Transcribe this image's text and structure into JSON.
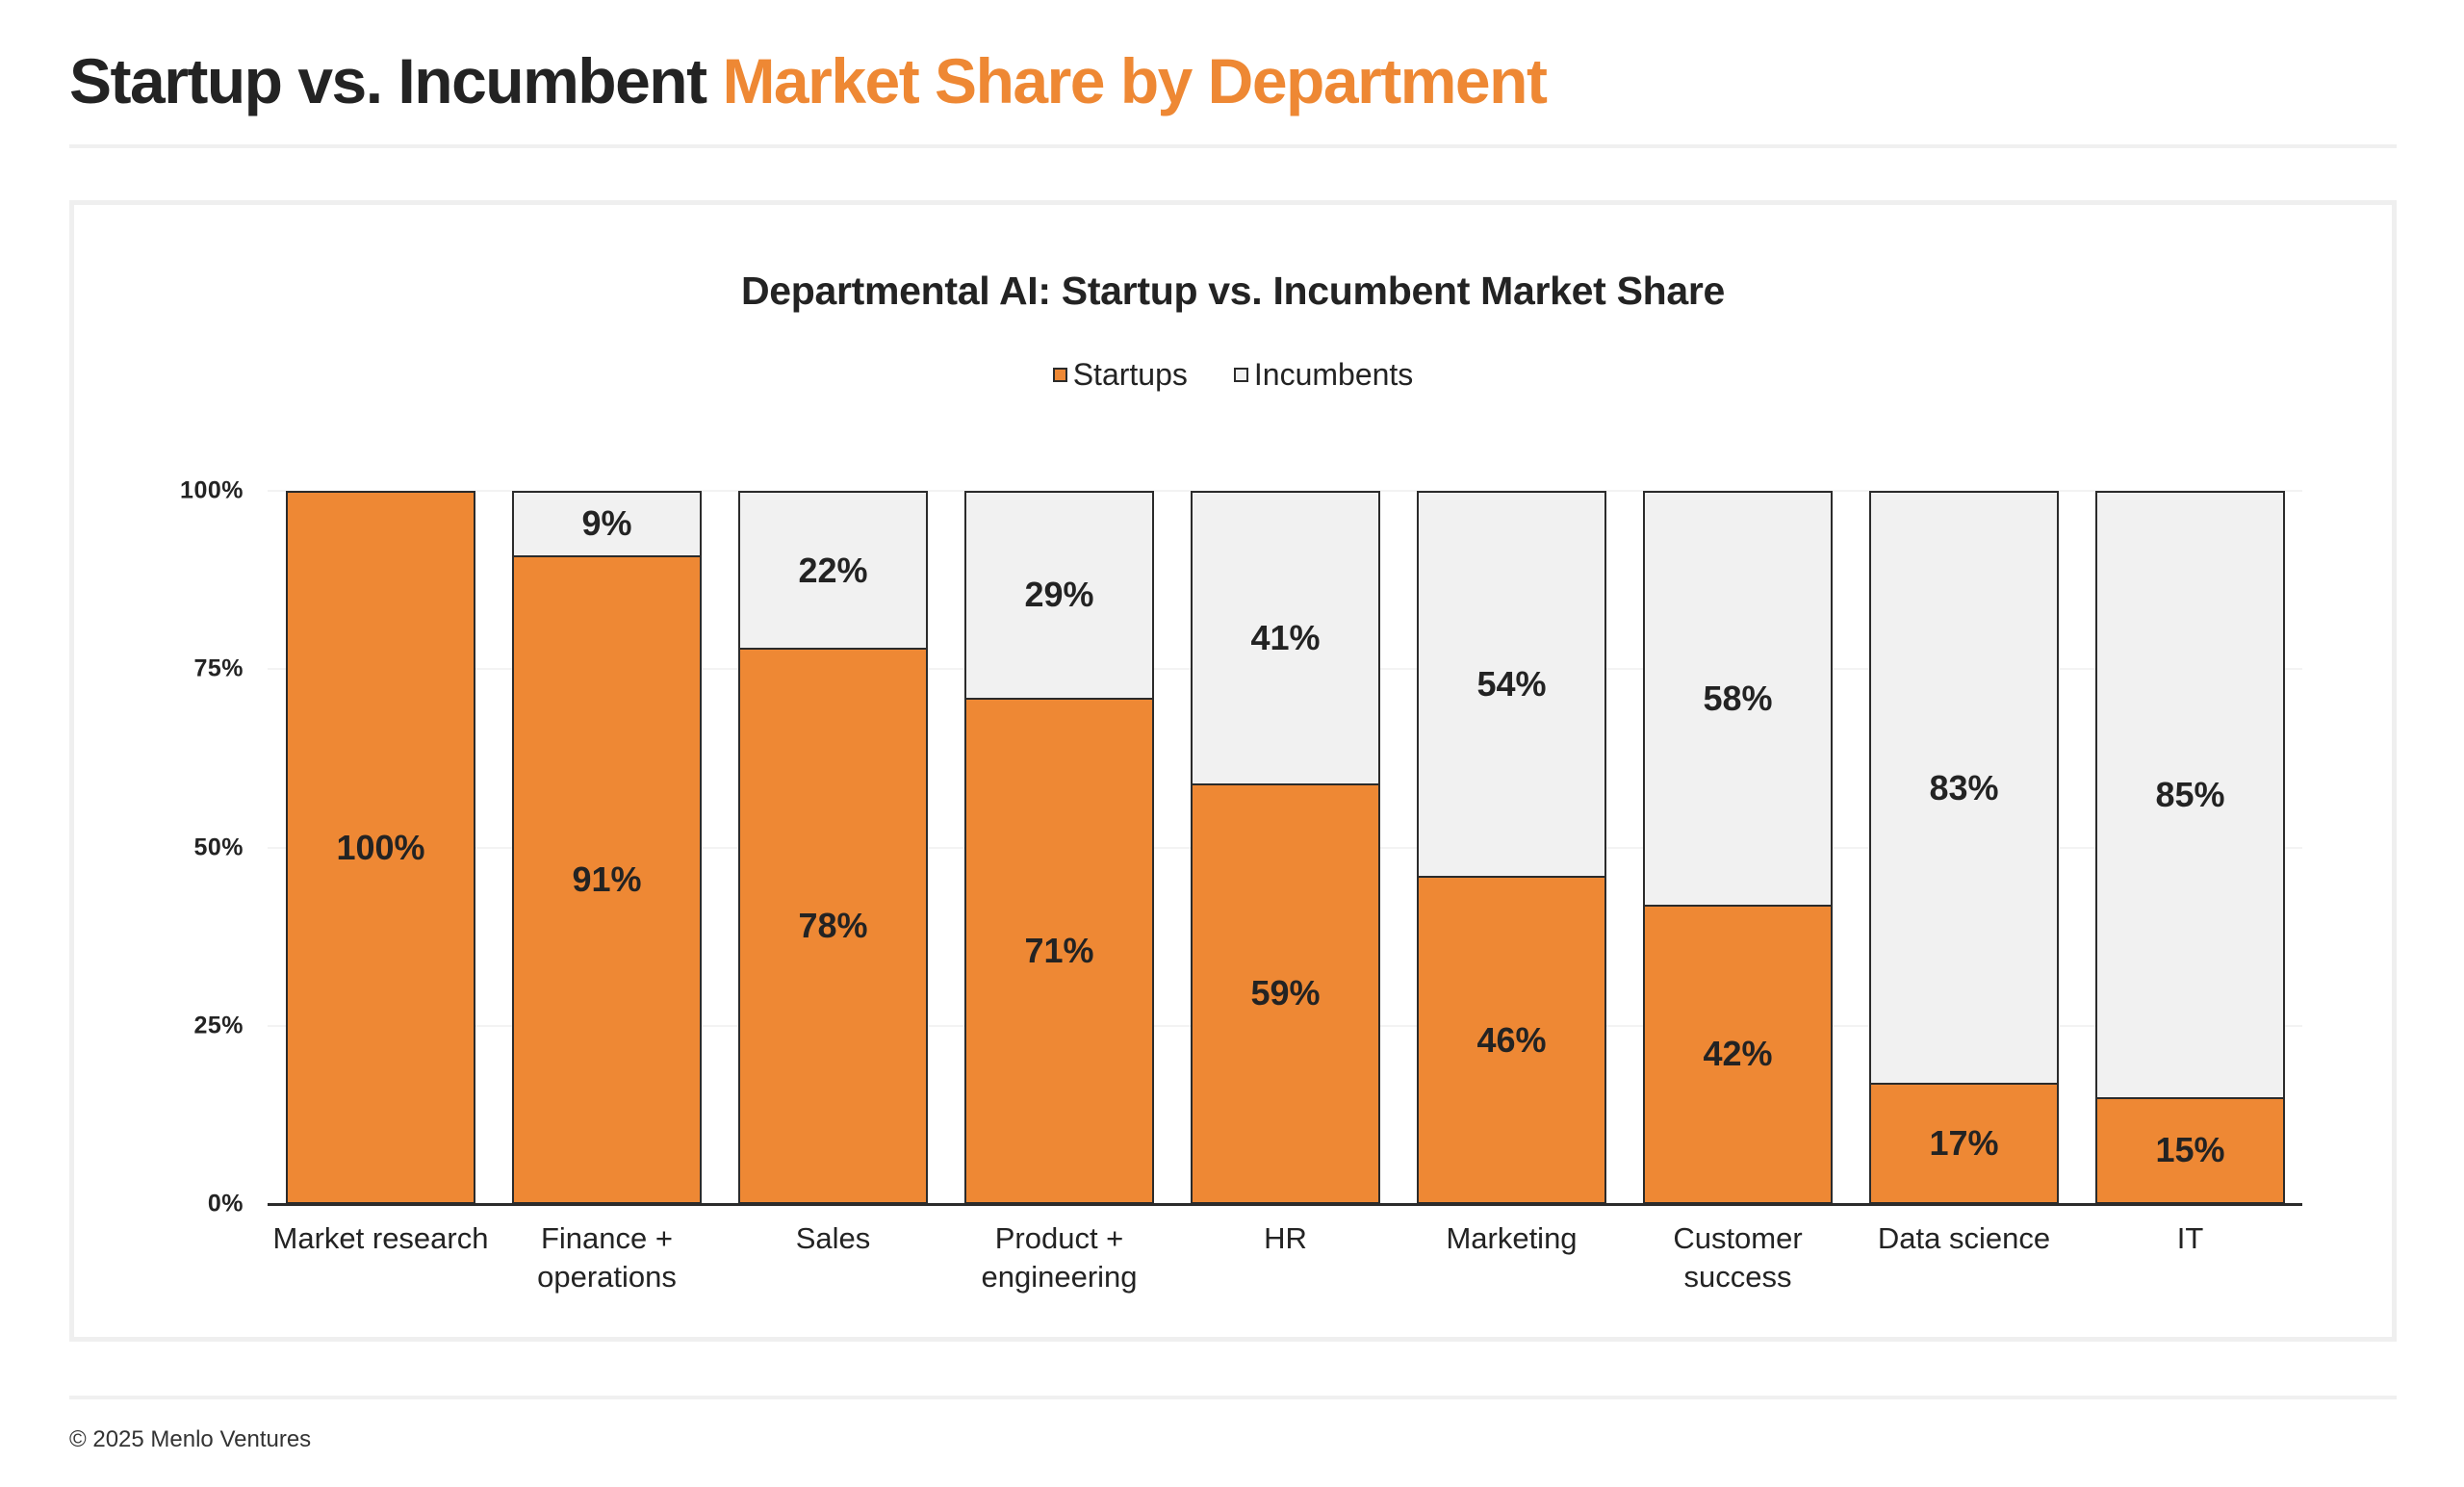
{
  "page": {
    "title_dark": "Startup vs. Incumbent",
    "title_accent": "Market Share by Department",
    "footer": "© 2025 Menlo Ventures"
  },
  "colors": {
    "accent": "#EE8834",
    "startups": "#EE8834",
    "incumbents": "#F1F1F1",
    "text": "#232323",
    "outline": "#2B2B2B"
  },
  "legend": [
    {
      "label": "Startups",
      "color": "#EE8834"
    },
    {
      "label": "Incumbents",
      "color": "#F1F1F1"
    }
  ],
  "chart_data": {
    "type": "bar",
    "stacked": true,
    "title": "Departmental AI: Startup vs. Incumbent Market Share",
    "xlabel": "",
    "ylabel": "",
    "ylim": [
      0,
      100
    ],
    "yticks": [
      "0%",
      "25%",
      "50%",
      "75%",
      "100%"
    ],
    "grid": true,
    "legend_position": "top",
    "categories": [
      "Market research",
      "Finance + operations",
      "Sales",
      "Product + engineering",
      "HR",
      "Marketing",
      "Customer success",
      "Data science",
      "IT"
    ],
    "category_lines": [
      [
        "Market research"
      ],
      [
        "Finance +",
        "operations"
      ],
      [
        "Sales"
      ],
      [
        "Product +",
        "engineering"
      ],
      [
        "HR"
      ],
      [
        "Marketing"
      ],
      [
        "Customer",
        "success"
      ],
      [
        "Data science"
      ],
      [
        "IT"
      ]
    ],
    "series": [
      {
        "name": "Startups",
        "values": [
          100,
          91,
          78,
          71,
          59,
          46,
          42,
          17,
          15
        ]
      },
      {
        "name": "Incumbents",
        "values": [
          0,
          9,
          22,
          29,
          41,
          54,
          58,
          83,
          85
        ]
      }
    ]
  }
}
